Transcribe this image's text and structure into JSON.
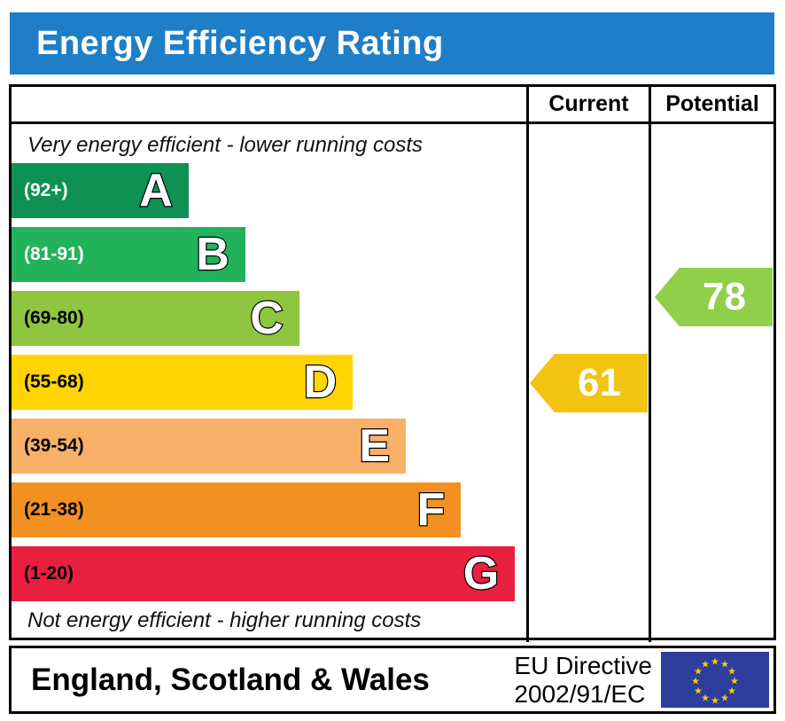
{
  "title": "Energy Efficiency Rating",
  "header_bg": "#1e7ec8",
  "columns": {
    "current": "Current",
    "potential": "Potential"
  },
  "top_note": "Very energy efficient - lower running costs",
  "bottom_note": "Not energy efficient - higher running costs",
  "bands": [
    {
      "letter": "A",
      "range": "(92+)",
      "color": "#0e9152",
      "range_text_color": "#ffffff",
      "width_pct": 34.4
    },
    {
      "letter": "B",
      "range": "(81-91)",
      "color": "#23b25c",
      "range_text_color": "#ffffff",
      "width_pct": 45.4
    },
    {
      "letter": "C",
      "range": "(69-80)",
      "color": "#8ec63f",
      "range_text_color": "#000000",
      "width_pct": 55.9
    },
    {
      "letter": "D",
      "range": "(55-68)",
      "color": "#ffd400",
      "range_text_color": "#000000",
      "width_pct": 66.3
    },
    {
      "letter": "E",
      "range": "(39-54)",
      "color": "#f8b069",
      "range_text_color": "#000000",
      "width_pct": 76.6
    },
    {
      "letter": "F",
      "range": "(21-38)",
      "color": "#f29022",
      "range_text_color": "#000000",
      "width_pct": 87.3
    },
    {
      "letter": "G",
      "range": "(1-20)",
      "color": "#e91f3f",
      "range_text_color": "#000000",
      "width_pct": 97.8
    }
  ],
  "current": {
    "value": "61",
    "color": "#f2c411",
    "band": "D"
  },
  "potential": {
    "value": "78",
    "color": "#90cf4a",
    "band": "C"
  },
  "footer": {
    "region": "England, Scotland & Wales",
    "directive_line1": "EU Directive",
    "directive_line2": "2002/91/EC"
  },
  "eu_flag": {
    "field_color": "#2e3e9d",
    "star_color": "#ffcc00"
  },
  "chart_data": {
    "type": "bar",
    "title": "Energy Efficiency Rating",
    "categories": [
      "A (92+)",
      "B (81-91)",
      "C (69-80)",
      "D (55-68)",
      "E (39-54)",
      "F (21-38)",
      "G (1-20)"
    ],
    "values": [
      34.4,
      45.4,
      55.9,
      66.3,
      76.6,
      87.3,
      97.8
    ],
    "series": [
      {
        "name": "Current",
        "value": 61,
        "band": "D"
      },
      {
        "name": "Potential",
        "value": 78,
        "band": "C"
      }
    ],
    "annotations": [
      "Very energy efficient - lower running costs",
      "Not energy efficient - higher running costs",
      "England, Scotland & Wales",
      "EU Directive 2002/91/EC"
    ],
    "legend_position": "top-right-columns",
    "grid": false
  }
}
